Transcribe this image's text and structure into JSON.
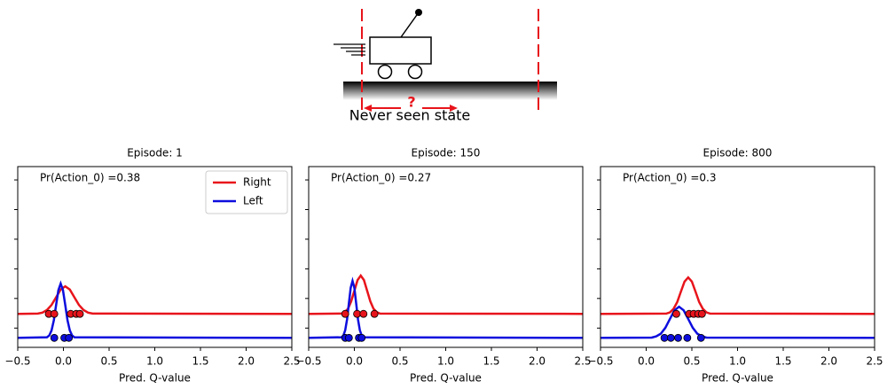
{
  "diagram": {
    "question": "?",
    "caption": "Never seen state"
  },
  "chart_data": [
    {
      "type": "line",
      "title": "Episode: 1",
      "annotation": "Pr(Action_0) =0.38",
      "xlabel": "Pred. Q-value",
      "xlim": [
        -0.5,
        2.5
      ],
      "ylim": [
        -0.65,
        5.45
      ],
      "xticks": [
        {
          "value": -0.5,
          "label": "−0.5"
        },
        {
          "value": 0,
          "label": "0.0"
        },
        0.5,
        {
          "value": 1,
          "label": "1.0"
        },
        1.5,
        {
          "value": 2,
          "label": "2.0"
        },
        2.5
      ],
      "yticks": [
        {
          "value": 0,
          "label": null
        },
        {
          "value": 1,
          "label": null
        },
        {
          "value": 2,
          "label": null
        },
        {
          "value": 3,
          "label": null
        },
        {
          "value": 4,
          "label": null
        },
        {
          "value": 5,
          "label": null
        }
      ],
      "legend": "upper right",
      "series": [
        {
          "name": "Right",
          "color": "#e8141b",
          "x": [
            -0.5,
            -0.28,
            -0.23,
            -0.18,
            -0.13,
            -0.08,
            -0.03,
            0.02,
            0.07,
            0.12,
            0.17,
            0.22,
            0.27,
            0.32,
            2.5
          ],
          "values": [
            0.48,
            0.49,
            0.52,
            0.61,
            0.78,
            1.04,
            1.3,
            1.41,
            1.3,
            1.04,
            0.78,
            0.61,
            0.52,
            0.49,
            0.48
          ],
          "points_x": [
            -0.16,
            -0.1,
            0.08,
            0.14,
            0.18
          ],
          "points_y": [
            0.48,
            0.48,
            0.48,
            0.48,
            0.48
          ]
        },
        {
          "name": "Left",
          "color": "#0d0dde",
          "x": [
            -0.5,
            -0.18,
            -0.155,
            -0.13,
            -0.105,
            -0.08,
            -0.055,
            -0.03,
            -0.005,
            0.02,
            0.045,
            0.07,
            0.095,
            0.12,
            2.5
          ],
          "values": [
            -0.33,
            -0.31,
            -0.25,
            -0.08,
            0.26,
            0.78,
            1.28,
            1.5,
            1.28,
            0.78,
            0.26,
            -0.08,
            -0.25,
            -0.31,
            -0.33
          ],
          "points_x": [
            -0.1,
            0.01,
            0.06
          ],
          "points_y": [
            -0.33,
            -0.33,
            -0.33
          ]
        }
      ]
    },
    {
      "type": "line",
      "title": "Episode: 150",
      "annotation": "Pr(Action_0) =0.27",
      "xlabel": "Pred. Q-value",
      "xlim": [
        -0.5,
        2.5
      ],
      "ylim": [
        -0.65,
        5.45
      ],
      "xticks": [
        {
          "value": -0.5,
          "label": "−0.5"
        },
        {
          "value": 0,
          "label": "0.0"
        },
        0.5,
        {
          "value": 1,
          "label": "1.0"
        },
        1.5,
        {
          "value": 2,
          "label": "2.0"
        },
        2.5
      ],
      "yticks": [
        {
          "value": 0,
          "label": null
        },
        {
          "value": 1,
          "label": null
        },
        {
          "value": 2,
          "label": null
        },
        {
          "value": 3,
          "label": null
        },
        {
          "value": 4,
          "label": null
        },
        {
          "value": 5,
          "label": null
        }
      ],
      "series": [
        {
          "name": "Right",
          "color": "#e8141b",
          "x": [
            -0.5,
            -0.14,
            -0.105,
            -0.07,
            -0.035,
            0,
            0.035,
            0.07,
            0.105,
            0.14,
            0.175,
            0.21,
            0.245,
            0.28,
            2.5
          ],
          "values": [
            0.48,
            0.49,
            0.54,
            0.65,
            0.9,
            1.26,
            1.62,
            1.77,
            1.62,
            1.26,
            0.9,
            0.65,
            0.54,
            0.49,
            0.48
          ],
          "points_x": [
            -0.1,
            0.03,
            0.1,
            0.22
          ],
          "points_y": [
            0.48,
            0.48,
            0.48,
            0.48
          ]
        },
        {
          "name": "Left",
          "color": "#0d0dde",
          "x": [
            -0.5,
            -0.14,
            -0.12,
            -0.1,
            -0.08,
            -0.06,
            -0.04,
            -0.02,
            0,
            0.02,
            0.04,
            0.06,
            0.08,
            0.1,
            2.5
          ],
          "values": [
            -0.33,
            -0.31,
            -0.25,
            -0.07,
            0.29,
            0.83,
            1.36,
            1.59,
            1.36,
            0.83,
            0.29,
            -0.07,
            -0.25,
            -0.31,
            -0.33
          ],
          "points_x": [
            -0.1,
            -0.06,
            0.05,
            0.08
          ],
          "points_y": [
            -0.33,
            -0.33,
            -0.33,
            -0.33
          ]
        }
      ]
    },
    {
      "type": "line",
      "title": "Episode: 800",
      "annotation": "Pr(Action_0) =0.3",
      "xlabel": "Pred. Q-value",
      "xlim": [
        -0.5,
        2.5
      ],
      "ylim": [
        -0.65,
        5.45
      ],
      "xticks": [
        {
          "value": -0.5,
          "label": "−0.5"
        },
        {
          "value": 0,
          "label": "0.0"
        },
        0.5,
        {
          "value": 1,
          "label": "1.0"
        },
        1.5,
        {
          "value": 2,
          "label": "2.0"
        },
        2.5
      ],
      "yticks": [
        {
          "value": 0,
          "label": null
        },
        {
          "value": 1,
          "label": null
        },
        {
          "value": 2,
          "label": null
        },
        {
          "value": 3,
          "label": null
        },
        {
          "value": 4,
          "label": null
        },
        {
          "value": 5,
          "label": null
        }
      ],
      "series": [
        {
          "name": "Right",
          "color": "#e8141b",
          "x": [
            -0.5,
            0.22,
            0.26,
            0.3,
            0.34,
            0.38,
            0.42,
            0.46,
            0.5,
            0.54,
            0.58,
            0.62,
            0.66,
            0.7,
            2.5
          ],
          "values": [
            0.48,
            0.49,
            0.53,
            0.65,
            0.88,
            1.23,
            1.57,
            1.71,
            1.57,
            1.23,
            0.88,
            0.65,
            0.53,
            0.49,
            0.48
          ],
          "points_x": [
            0.33,
            0.47,
            0.52,
            0.57,
            0.61
          ],
          "points_y": [
            0.48,
            0.48,
            0.48,
            0.48,
            0.48
          ]
        },
        {
          "name": "Left",
          "color": "#0d0dde",
          "x": [
            -0.5,
            0.06,
            0.11,
            0.16,
            0.21,
            0.26,
            0.31,
            0.36,
            0.41,
            0.46,
            0.51,
            0.56,
            0.61,
            0.66,
            2.5
          ],
          "values": [
            -0.33,
            -0.32,
            -0.28,
            -0.19,
            0.01,
            0.31,
            0.6,
            0.72,
            0.6,
            0.31,
            0.01,
            -0.19,
            -0.28,
            -0.32,
            -0.33
          ],
          "points_x": [
            0.2,
            0.27,
            0.35,
            0.45,
            0.6
          ],
          "points_y": [
            -0.33,
            -0.33,
            -0.33,
            -0.33,
            -0.33
          ]
        }
      ]
    }
  ]
}
